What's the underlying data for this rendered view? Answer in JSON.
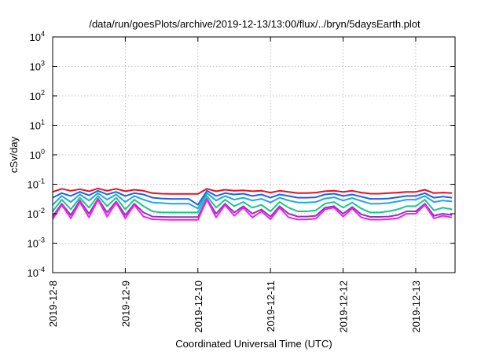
{
  "chart_data": {
    "type": "line",
    "title": "/data/run/goesPlots/archive/2019-12-13/13:00/flux/../bryn/5daysEarth.plot",
    "xlabel": "Coordinated Universal Time (UTC)",
    "ylabel": "cSv/day",
    "yscale": "log",
    "ylim": [
      0.0001,
      10000
    ],
    "xlim": [
      "2019-12-08",
      "2019-12-13 13:00"
    ],
    "grid": true,
    "y_ticks": [
      {
        "base": "10",
        "exp": "-4"
      },
      {
        "base": "10",
        "exp": "-3"
      },
      {
        "base": "10",
        "exp": "-2"
      },
      {
        "base": "10",
        "exp": "-1"
      },
      {
        "base": "10",
        "exp": "0"
      },
      {
        "base": "10",
        "exp": "1"
      },
      {
        "base": "10",
        "exp": "2"
      },
      {
        "base": "10",
        "exp": "3"
      },
      {
        "base": "10",
        "exp": "4"
      }
    ],
    "x_ticks": [
      "2019-12-8",
      "2019-12-9",
      "2019-12-10",
      "2019-12-11",
      "2019-12-12",
      "2019-12-13"
    ],
    "series": [
      {
        "color": "#e8101e",
        "x": [
          "2019-12-08 00:00",
          "2019-12-08 03:00",
          "2019-12-08 06:00",
          "2019-12-08 09:00",
          "2019-12-08 12:00",
          "2019-12-08 15:00",
          "2019-12-08 18:00",
          "2019-12-08 21:00",
          "2019-12-09 00:00",
          "2019-12-09 03:00",
          "2019-12-09 06:00",
          "2019-12-09 09:00",
          "2019-12-09 12:00",
          "2019-12-09 15:00",
          "2019-12-09 18:00",
          "2019-12-09 21:00",
          "2019-12-10 00:00",
          "2019-12-10 03:00",
          "2019-12-10 06:00",
          "2019-12-10 09:00",
          "2019-12-10 12:00",
          "2019-12-10 15:00",
          "2019-12-10 18:00",
          "2019-12-10 21:00",
          "2019-12-11 00:00",
          "2019-12-11 03:00",
          "2019-12-11 06:00",
          "2019-12-11 09:00",
          "2019-12-11 12:00",
          "2019-12-11 15:00",
          "2019-12-11 18:00",
          "2019-12-11 21:00",
          "2019-12-12 00:00",
          "2019-12-12 03:00",
          "2019-12-12 06:00",
          "2019-12-12 09:00",
          "2019-12-12 12:00",
          "2019-12-12 15:00",
          "2019-12-12 18:00",
          "2019-12-12 21:00",
          "2019-12-13 00:00",
          "2019-12-13 03:00",
          "2019-12-13 06:00",
          "2019-12-13 09:00",
          "2019-12-13 12:00"
        ],
        "y": [
          0.055,
          0.07,
          0.06,
          0.068,
          0.058,
          0.072,
          0.06,
          0.07,
          0.058,
          0.065,
          0.06,
          0.05,
          0.048,
          0.047,
          0.047,
          0.047,
          0.047,
          0.07,
          0.058,
          0.065,
          0.06,
          0.062,
          0.058,
          0.06,
          0.052,
          0.06,
          0.055,
          0.05,
          0.05,
          0.052,
          0.058,
          0.06,
          0.055,
          0.06,
          0.052,
          0.048,
          0.048,
          0.05,
          0.052,
          0.055,
          0.055,
          0.065,
          0.05,
          0.052,
          0.05
        ]
      },
      {
        "color": "#1f5fe8",
        "x": [
          "2019-12-08 00:00",
          "2019-12-08 03:00",
          "2019-12-08 06:00",
          "2019-12-08 09:00",
          "2019-12-08 12:00",
          "2019-12-08 15:00",
          "2019-12-08 18:00",
          "2019-12-08 21:00",
          "2019-12-09 00:00",
          "2019-12-09 03:00",
          "2019-12-09 06:00",
          "2019-12-09 09:00",
          "2019-12-09 12:00",
          "2019-12-09 15:00",
          "2019-12-09 18:00",
          "2019-12-09 21:00",
          "2019-12-10 00:00",
          "2019-12-10 03:00",
          "2019-12-10 06:00",
          "2019-12-10 09:00",
          "2019-12-10 12:00",
          "2019-12-10 15:00",
          "2019-12-10 18:00",
          "2019-12-10 21:00",
          "2019-12-11 00:00",
          "2019-12-11 03:00",
          "2019-12-11 06:00",
          "2019-12-11 09:00",
          "2019-12-11 12:00",
          "2019-12-11 15:00",
          "2019-12-11 18:00",
          "2019-12-11 21:00",
          "2019-12-12 00:00",
          "2019-12-12 03:00",
          "2019-12-12 06:00",
          "2019-12-12 09:00",
          "2019-12-12 12:00",
          "2019-12-12 15:00",
          "2019-12-12 18:00",
          "2019-12-12 21:00",
          "2019-12-13 00:00",
          "2019-12-13 03:00",
          "2019-12-13 06:00",
          "2019-12-13 09:00",
          "2019-12-13 12:00"
        ],
        "y": [
          0.035,
          0.05,
          0.04,
          0.055,
          0.042,
          0.06,
          0.045,
          0.055,
          0.04,
          0.05,
          0.045,
          0.035,
          0.033,
          0.032,
          0.032,
          0.032,
          0.02,
          0.06,
          0.04,
          0.05,
          0.045,
          0.048,
          0.04,
          0.045,
          0.035,
          0.045,
          0.04,
          0.035,
          0.035,
          0.036,
          0.045,
          0.048,
          0.04,
          0.045,
          0.038,
          0.032,
          0.032,
          0.033,
          0.036,
          0.04,
          0.04,
          0.05,
          0.035,
          0.038,
          0.035
        ]
      },
      {
        "color": "#1aa7e8",
        "x": [
          "2019-12-08 00:00",
          "2019-12-08 03:00",
          "2019-12-08 06:00",
          "2019-12-08 09:00",
          "2019-12-08 12:00",
          "2019-12-08 15:00",
          "2019-12-08 18:00",
          "2019-12-08 21:00",
          "2019-12-09 00:00",
          "2019-12-09 03:00",
          "2019-12-09 06:00",
          "2019-12-09 09:00",
          "2019-12-09 12:00",
          "2019-12-09 15:00",
          "2019-12-09 18:00",
          "2019-12-09 21:00",
          "2019-12-10 00:00",
          "2019-12-10 03:00",
          "2019-12-10 06:00",
          "2019-12-10 09:00",
          "2019-12-10 12:00",
          "2019-12-10 15:00",
          "2019-12-10 18:00",
          "2019-12-10 21:00",
          "2019-12-11 00:00",
          "2019-12-11 03:00",
          "2019-12-11 06:00",
          "2019-12-11 09:00",
          "2019-12-11 12:00",
          "2019-12-11 15:00",
          "2019-12-11 18:00",
          "2019-12-11 21:00",
          "2019-12-12 00:00",
          "2019-12-12 03:00",
          "2019-12-12 06:00",
          "2019-12-12 09:00",
          "2019-12-12 12:00",
          "2019-12-12 15:00",
          "2019-12-12 18:00",
          "2019-12-12 21:00",
          "2019-12-13 00:00",
          "2019-12-13 03:00",
          "2019-12-13 06:00",
          "2019-12-13 09:00",
          "2019-12-13 12:00"
        ],
        "y": [
          0.02,
          0.04,
          0.025,
          0.045,
          0.028,
          0.05,
          0.03,
          0.045,
          0.025,
          0.04,
          0.03,
          0.024,
          0.023,
          0.022,
          0.022,
          0.022,
          0.015,
          0.05,
          0.028,
          0.04,
          0.03,
          0.035,
          0.028,
          0.032,
          0.024,
          0.035,
          0.028,
          0.024,
          0.024,
          0.025,
          0.033,
          0.036,
          0.028,
          0.034,
          0.027,
          0.022,
          0.022,
          0.023,
          0.026,
          0.03,
          0.03,
          0.04,
          0.025,
          0.028,
          0.026
        ]
      },
      {
        "color": "#17c78a",
        "x": [
          "2019-12-08 00:00",
          "2019-12-08 03:00",
          "2019-12-08 06:00",
          "2019-12-08 09:00",
          "2019-12-08 12:00",
          "2019-12-08 15:00",
          "2019-12-08 18:00",
          "2019-12-08 21:00",
          "2019-12-09 00:00",
          "2019-12-09 03:00",
          "2019-12-09 06:00",
          "2019-12-09 09:00",
          "2019-12-09 12:00",
          "2019-12-09 15:00",
          "2019-12-09 18:00",
          "2019-12-09 21:00",
          "2019-12-10 00:00",
          "2019-12-10 03:00",
          "2019-12-10 06:00",
          "2019-12-10 09:00",
          "2019-12-10 12:00",
          "2019-12-10 15:00",
          "2019-12-10 18:00",
          "2019-12-10 21:00",
          "2019-12-11 00:00",
          "2019-12-11 03:00",
          "2019-12-11 06:00",
          "2019-12-11 09:00",
          "2019-12-11 12:00",
          "2019-12-11 15:00",
          "2019-12-11 18:00",
          "2019-12-11 21:00",
          "2019-12-12 00:00",
          "2019-12-12 03:00",
          "2019-12-12 06:00",
          "2019-12-12 09:00",
          "2019-12-12 12:00",
          "2019-12-12 15:00",
          "2019-12-12 18:00",
          "2019-12-12 21:00",
          "2019-12-13 00:00",
          "2019-12-13 03:00",
          "2019-12-13 06:00",
          "2019-12-13 09:00",
          "2019-12-13 12:00"
        ],
        "y": [
          0.012,
          0.03,
          0.014,
          0.035,
          0.016,
          0.04,
          0.018,
          0.035,
          0.014,
          0.03,
          0.018,
          0.012,
          0.011,
          0.011,
          0.011,
          0.011,
          0.011,
          0.04,
          0.016,
          0.03,
          0.018,
          0.025,
          0.016,
          0.02,
          0.012,
          0.025,
          0.016,
          0.012,
          0.012,
          0.013,
          0.022,
          0.025,
          0.016,
          0.024,
          0.015,
          0.011,
          0.011,
          0.012,
          0.014,
          0.018,
          0.018,
          0.03,
          0.013,
          0.016,
          0.014
        ]
      },
      {
        "color": "#8a3aa8",
        "x": [
          "2019-12-08 00:00",
          "2019-12-08 03:00",
          "2019-12-08 06:00",
          "2019-12-08 09:00",
          "2019-12-08 12:00",
          "2019-12-08 15:00",
          "2019-12-08 18:00",
          "2019-12-08 21:00",
          "2019-12-09 00:00",
          "2019-12-09 03:00",
          "2019-12-09 06:00",
          "2019-12-09 09:00",
          "2019-12-09 12:00",
          "2019-12-09 15:00",
          "2019-12-09 18:00",
          "2019-12-09 21:00",
          "2019-12-10 00:00",
          "2019-12-10 03:00",
          "2019-12-10 06:00",
          "2019-12-10 09:00",
          "2019-12-10 12:00",
          "2019-12-10 15:00",
          "2019-12-10 18:00",
          "2019-12-10 21:00",
          "2019-12-11 00:00",
          "2019-12-11 03:00",
          "2019-12-11 06:00",
          "2019-12-11 09:00",
          "2019-12-11 12:00",
          "2019-12-11 15:00",
          "2019-12-11 18:00",
          "2019-12-11 21:00",
          "2019-12-12 00:00",
          "2019-12-12 03:00",
          "2019-12-12 06:00",
          "2019-12-12 09:00",
          "2019-12-12 12:00",
          "2019-12-12 15:00",
          "2019-12-12 18:00",
          "2019-12-12 21:00",
          "2019-12-13 00:00",
          "2019-12-13 03:00",
          "2019-12-13 06:00",
          "2019-12-13 09:00",
          "2019-12-13 12:00"
        ],
        "y": [
          0.008,
          0.022,
          0.009,
          0.028,
          0.01,
          0.032,
          0.011,
          0.026,
          0.009,
          0.022,
          0.011,
          0.008,
          0.0078,
          0.0077,
          0.0077,
          0.0077,
          0.0077,
          0.032,
          0.01,
          0.022,
          0.011,
          0.018,
          0.01,
          0.014,
          0.008,
          0.018,
          0.01,
          0.008,
          0.008,
          0.0085,
          0.016,
          0.018,
          0.01,
          0.017,
          0.0095,
          0.0078,
          0.0078,
          0.008,
          0.009,
          0.012,
          0.012,
          0.022,
          0.0085,
          0.01,
          0.009
        ]
      },
      {
        "color": "#ff16ff",
        "x": [
          "2019-12-08 00:00",
          "2019-12-08 03:00",
          "2019-12-08 06:00",
          "2019-12-08 09:00",
          "2019-12-08 12:00",
          "2019-12-08 15:00",
          "2019-12-08 18:00",
          "2019-12-08 21:00",
          "2019-12-09 00:00",
          "2019-12-09 03:00",
          "2019-12-09 06:00",
          "2019-12-09 09:00",
          "2019-12-09 12:00",
          "2019-12-09 15:00",
          "2019-12-09 18:00",
          "2019-12-09 21:00",
          "2019-12-10 00:00",
          "2019-12-10 03:00",
          "2019-12-10 06:00",
          "2019-12-10 09:00",
          "2019-12-10 12:00",
          "2019-12-10 15:00",
          "2019-12-10 18:00",
          "2019-12-10 21:00",
          "2019-12-11 00:00",
          "2019-12-11 03:00",
          "2019-12-11 06:00",
          "2019-12-11 09:00",
          "2019-12-11 12:00",
          "2019-12-11 15:00",
          "2019-12-11 18:00",
          "2019-12-11 21:00",
          "2019-12-12 00:00",
          "2019-12-12 03:00",
          "2019-12-12 06:00",
          "2019-12-12 09:00",
          "2019-12-12 12:00",
          "2019-12-12 15:00",
          "2019-12-12 18:00",
          "2019-12-12 21:00",
          "2019-12-13 00:00",
          "2019-12-13 03:00",
          "2019-12-13 06:00",
          "2019-12-13 09:00",
          "2019-12-13 12:00"
        ],
        "y": [
          0.0065,
          0.02,
          0.007,
          0.025,
          0.0075,
          0.03,
          0.008,
          0.024,
          0.007,
          0.02,
          0.008,
          0.0065,
          0.0063,
          0.0062,
          0.0062,
          0.0062,
          0.0062,
          0.03,
          0.0075,
          0.02,
          0.0085,
          0.016,
          0.0075,
          0.012,
          0.0065,
          0.016,
          0.0075,
          0.0064,
          0.0064,
          0.0068,
          0.014,
          0.016,
          0.008,
          0.015,
          0.0075,
          0.0063,
          0.0063,
          0.0065,
          0.007,
          0.01,
          0.01,
          0.02,
          0.007,
          0.0085,
          0.0075
        ]
      }
    ]
  }
}
